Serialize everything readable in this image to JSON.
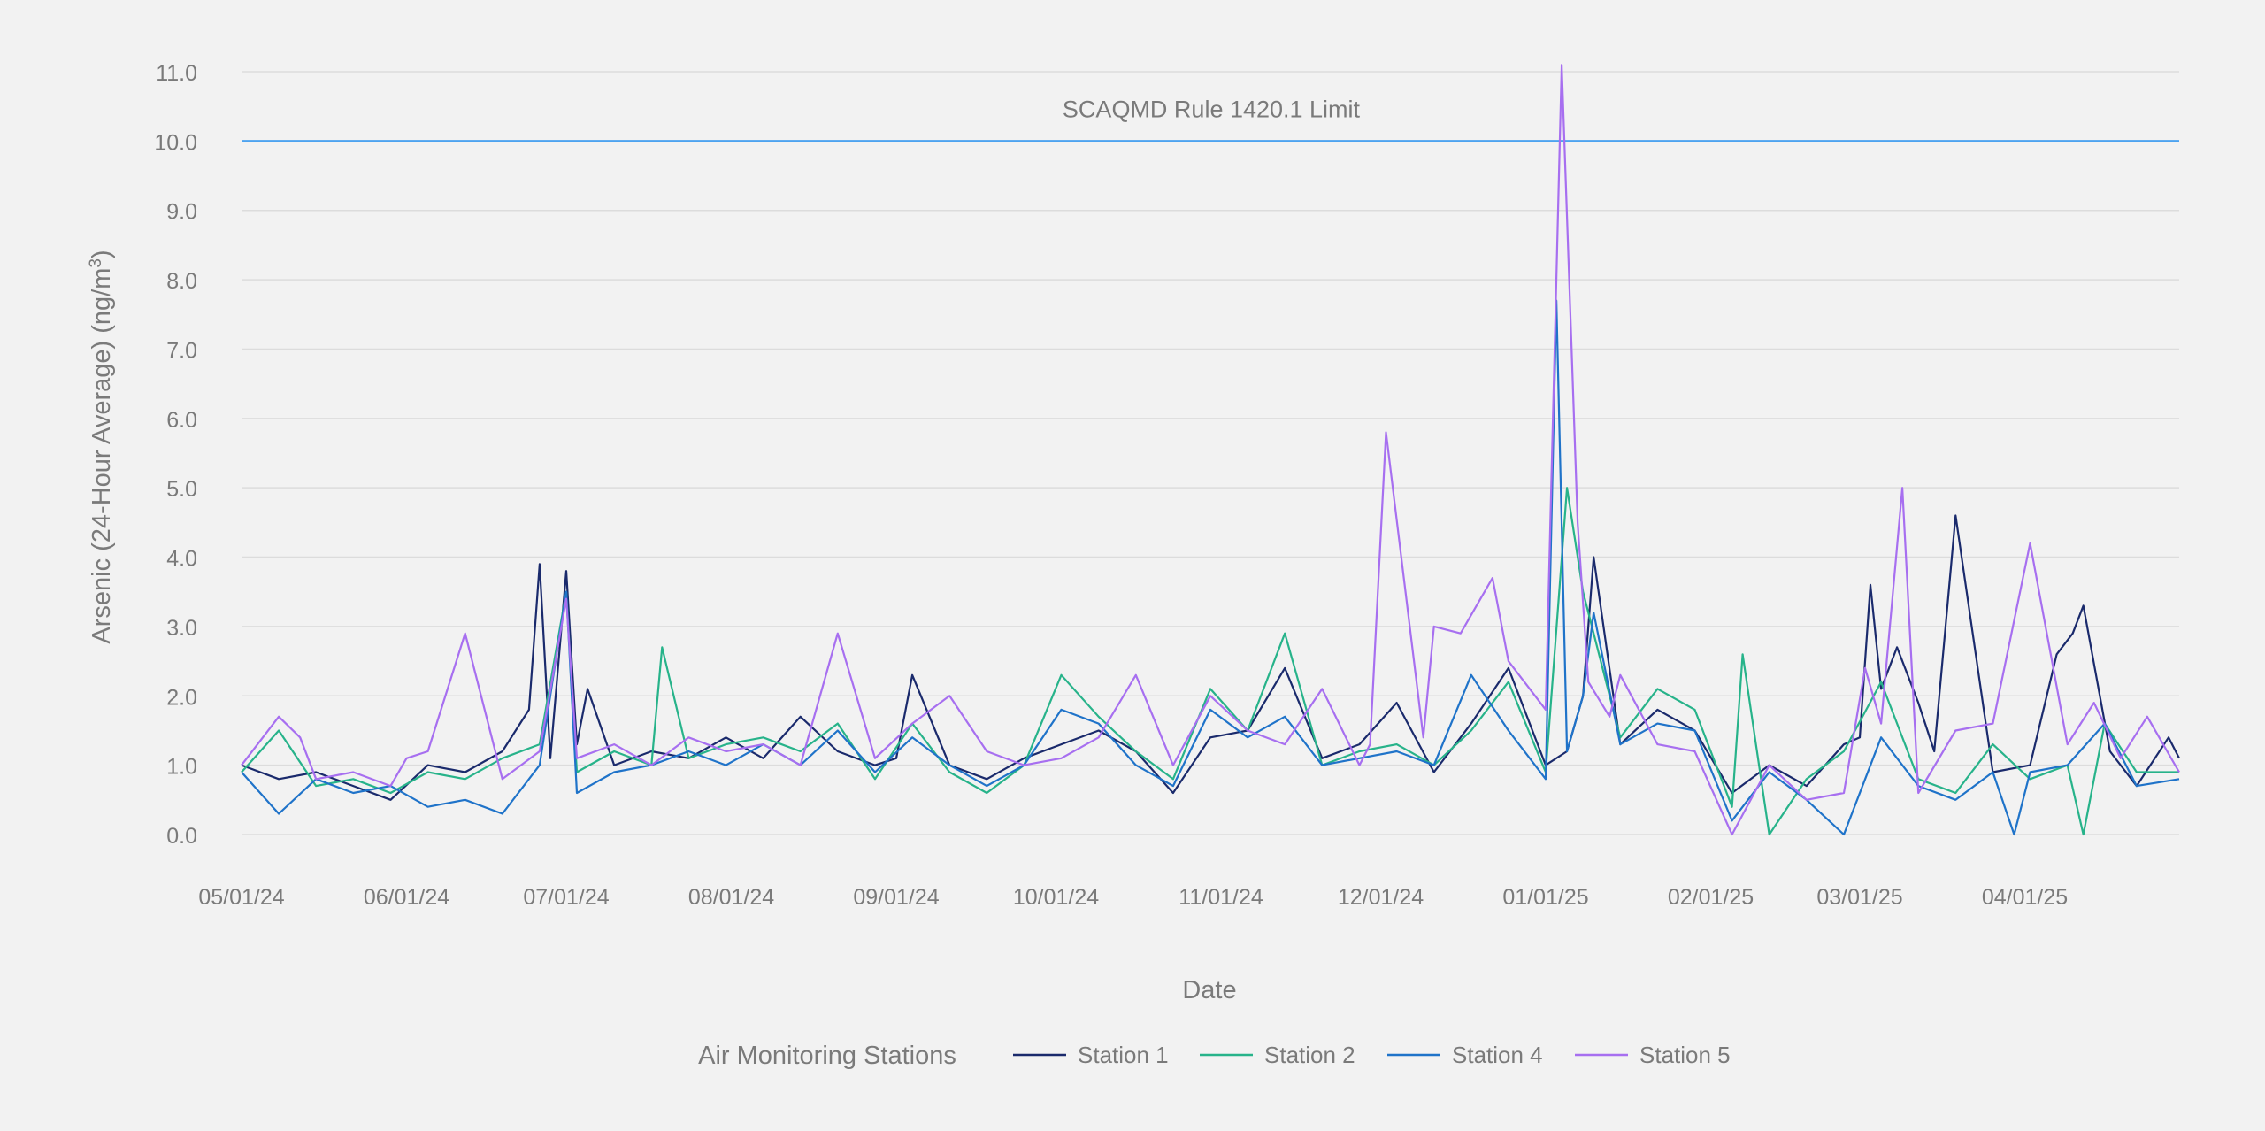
{
  "chart_data": {
    "type": "line",
    "title": "",
    "xlabel": "Date",
    "ylabel": "Arsenic (24-Hour Average) (ng/m³)",
    "ylabel_main": "Arsenic (24-Hour Average) (ng/m",
    "ylabel_sup": "3",
    "ylabel_tail": ")",
    "ylim": [
      0,
      11
    ],
    "yticks": [
      0,
      1,
      2,
      3,
      4,
      5,
      6,
      7,
      8,
      9,
      10,
      11
    ],
    "ytick_labels": [
      "0.0",
      "1.0",
      "2.0",
      "3.0",
      "4.0",
      "5.0",
      "6.0",
      "7.0",
      "8.0",
      "9.0",
      "10.0",
      "11.0"
    ],
    "xlim": [
      "2024-05-01",
      "2025-04-30"
    ],
    "xticks": [
      "2024-05-01",
      "2024-06-01",
      "2024-07-01",
      "2024-08-01",
      "2024-09-01",
      "2024-10-01",
      "2024-11-01",
      "2024-12-01",
      "2025-01-01",
      "2025-02-01",
      "2025-03-01",
      "2025-04-01"
    ],
    "xtick_labels": [
      "05/01/24",
      "06/01/24",
      "07/01/24",
      "08/01/24",
      "09/01/24",
      "10/01/24",
      "11/01/24",
      "12/01/24",
      "01/01/25",
      "02/01/25",
      "03/01/25",
      "04/01/25"
    ],
    "grid": "horizontal",
    "legend": {
      "title": "Air Monitoring Stations",
      "placement": "bottom-center"
    },
    "reference_line": {
      "label": "SCAQMD Rule 1420.1 Limit",
      "value": 10.0,
      "color": "#4da3f0"
    },
    "series": [
      {
        "name": "Station 1",
        "color": "#1a2a6c",
        "x": [
          "2024-05-01",
          "2024-05-08",
          "2024-05-15",
          "2024-05-22",
          "2024-05-29",
          "2024-06-05",
          "2024-06-12",
          "2024-06-19",
          "2024-06-24",
          "2024-06-26",
          "2024-06-28",
          "2024-07-01",
          "2024-07-03",
          "2024-07-05",
          "2024-07-10",
          "2024-07-17",
          "2024-07-24",
          "2024-07-31",
          "2024-08-07",
          "2024-08-14",
          "2024-08-21",
          "2024-08-28",
          "2024-09-01",
          "2024-09-04",
          "2024-09-11",
          "2024-09-18",
          "2024-09-25",
          "2024-10-02",
          "2024-10-09",
          "2024-10-16",
          "2024-10-23",
          "2024-10-30",
          "2024-11-06",
          "2024-11-13",
          "2024-11-20",
          "2024-11-27",
          "2024-12-04",
          "2024-12-11",
          "2024-12-18",
          "2024-12-25",
          "2025-01-01",
          "2025-01-05",
          "2025-01-08",
          "2025-01-10",
          "2025-01-15",
          "2025-01-22",
          "2025-01-29",
          "2025-02-05",
          "2025-02-12",
          "2025-02-19",
          "2025-02-26",
          "2025-03-01",
          "2025-03-03",
          "2025-03-05",
          "2025-03-08",
          "2025-03-12",
          "2025-03-15",
          "2025-03-19",
          "2025-03-26",
          "2025-04-02",
          "2025-04-07",
          "2025-04-10",
          "2025-04-12",
          "2025-04-17",
          "2025-04-22",
          "2025-04-28",
          "2025-04-30"
        ],
        "values": [
          1.0,
          0.8,
          0.9,
          0.7,
          0.5,
          1.0,
          0.9,
          1.2,
          1.8,
          3.9,
          1.1,
          3.8,
          1.3,
          2.1,
          1.0,
          1.2,
          1.1,
          1.4,
          1.1,
          1.7,
          1.2,
          1.0,
          1.1,
          2.3,
          1.0,
          0.8,
          1.1,
          1.3,
          1.5,
          1.2,
          0.6,
          1.4,
          1.5,
          2.4,
          1.1,
          1.3,
          1.9,
          0.9,
          1.6,
          2.4,
          1.0,
          1.2,
          2.0,
          4.0,
          1.3,
          1.8,
          1.5,
          0.6,
          1.0,
          0.7,
          1.3,
          1.4,
          3.6,
          2.1,
          2.7,
          1.9,
          1.2,
          4.6,
          0.9,
          1.0,
          2.6,
          2.9,
          3.3,
          1.2,
          0.7,
          1.4,
          1.1
        ]
      },
      {
        "name": "Station 2",
        "color": "#27b38a",
        "x": [
          "2024-05-01",
          "2024-05-08",
          "2024-05-15",
          "2024-05-22",
          "2024-05-29",
          "2024-06-05",
          "2024-06-12",
          "2024-06-19",
          "2024-06-26",
          "2024-07-01",
          "2024-07-03",
          "2024-07-10",
          "2024-07-17",
          "2024-07-19",
          "2024-07-24",
          "2024-07-31",
          "2024-08-07",
          "2024-08-14",
          "2024-08-21",
          "2024-08-28",
          "2024-09-04",
          "2024-09-11",
          "2024-09-18",
          "2024-09-25",
          "2024-10-02",
          "2024-10-09",
          "2024-10-16",
          "2024-10-23",
          "2024-10-30",
          "2024-11-06",
          "2024-11-13",
          "2024-11-20",
          "2024-11-27",
          "2024-12-04",
          "2024-12-11",
          "2024-12-18",
          "2024-12-25",
          "2025-01-01",
          "2025-01-05",
          "2025-01-08",
          "2025-01-15",
          "2025-01-22",
          "2025-01-29",
          "2025-02-05",
          "2025-02-07",
          "2025-02-12",
          "2025-02-19",
          "2025-02-26",
          "2025-03-05",
          "2025-03-12",
          "2025-03-19",
          "2025-03-26",
          "2025-04-02",
          "2025-04-09",
          "2025-04-12",
          "2025-04-16",
          "2025-04-22",
          "2025-04-30"
        ],
        "values": [
          0.9,
          1.5,
          0.7,
          0.8,
          0.6,
          0.9,
          0.8,
          1.1,
          1.3,
          3.5,
          0.9,
          1.2,
          1.0,
          2.7,
          1.1,
          1.3,
          1.4,
          1.2,
          1.6,
          0.8,
          1.6,
          0.9,
          0.6,
          1.0,
          2.3,
          1.7,
          1.2,
          0.8,
          2.1,
          1.5,
          2.9,
          1.0,
          1.2,
          1.3,
          1.0,
          1.5,
          2.2,
          0.9,
          5.0,
          3.5,
          1.4,
          2.1,
          1.8,
          0.4,
          2.6,
          0.0,
          0.8,
          1.2,
          2.2,
          0.8,
          0.6,
          1.3,
          0.8,
          1.0,
          0.0,
          1.6,
          0.9,
          0.9
        ]
      },
      {
        "name": "Station 4",
        "color": "#1f73c9",
        "x": [
          "2024-05-01",
          "2024-05-08",
          "2024-05-15",
          "2024-05-22",
          "2024-05-29",
          "2024-06-05",
          "2024-06-12",
          "2024-06-19",
          "2024-06-26",
          "2024-07-01",
          "2024-07-03",
          "2024-07-10",
          "2024-07-17",
          "2024-07-24",
          "2024-07-31",
          "2024-08-07",
          "2024-08-14",
          "2024-08-21",
          "2024-08-28",
          "2024-09-04",
          "2024-09-11",
          "2024-09-18",
          "2024-09-25",
          "2024-10-02",
          "2024-10-09",
          "2024-10-16",
          "2024-10-23",
          "2024-10-30",
          "2024-11-06",
          "2024-11-13",
          "2024-11-20",
          "2024-11-27",
          "2024-12-04",
          "2024-12-11",
          "2024-12-18",
          "2024-12-25",
          "2025-01-01",
          "2025-01-03",
          "2025-01-05",
          "2025-01-08",
          "2025-01-10",
          "2025-01-15",
          "2025-01-22",
          "2025-01-29",
          "2025-02-05",
          "2025-02-12",
          "2025-02-19",
          "2025-02-26",
          "2025-03-05",
          "2025-03-12",
          "2025-03-19",
          "2025-03-26",
          "2025-03-30",
          "2025-04-02",
          "2025-04-09",
          "2025-04-16",
          "2025-04-22",
          "2025-04-30"
        ],
        "values": [
          0.9,
          0.3,
          0.8,
          0.6,
          0.7,
          0.4,
          0.5,
          0.3,
          1.0,
          3.5,
          0.6,
          0.9,
          1.0,
          1.2,
          1.0,
          1.3,
          1.0,
          1.5,
          0.9,
          1.4,
          1.0,
          0.7,
          1.0,
          1.8,
          1.6,
          1.0,
          0.7,
          1.8,
          1.4,
          1.7,
          1.0,
          1.1,
          1.2,
          1.0,
          2.3,
          1.5,
          0.8,
          7.7,
          1.2,
          2.0,
          3.2,
          1.3,
          1.6,
          1.5,
          0.2,
          0.9,
          0.5,
          0.0,
          1.4,
          0.7,
          0.5,
          0.9,
          0.0,
          0.9,
          1.0,
          1.6,
          0.7,
          0.8
        ]
      },
      {
        "name": "Station 5",
        "color": "#a76ff0",
        "x": [
          "2024-05-01",
          "2024-05-08",
          "2024-05-12",
          "2024-05-15",
          "2024-05-22",
          "2024-05-29",
          "2024-06-01",
          "2024-06-05",
          "2024-06-12",
          "2024-06-19",
          "2024-06-26",
          "2024-07-01",
          "2024-07-03",
          "2024-07-10",
          "2024-07-17",
          "2024-07-24",
          "2024-07-31",
          "2024-08-07",
          "2024-08-14",
          "2024-08-21",
          "2024-08-28",
          "2024-09-04",
          "2024-09-11",
          "2024-09-18",
          "2024-09-25",
          "2024-10-02",
          "2024-10-09",
          "2024-10-16",
          "2024-10-23",
          "2024-10-30",
          "2024-11-06",
          "2024-11-13",
          "2024-11-20",
          "2024-11-27",
          "2024-11-29",
          "2024-12-02",
          "2024-12-09",
          "2024-12-11",
          "2024-12-16",
          "2024-12-22",
          "2024-12-25",
          "2025-01-01",
          "2025-01-04",
          "2025-01-07",
          "2025-01-09",
          "2025-01-13",
          "2025-01-15",
          "2025-01-22",
          "2025-01-29",
          "2025-02-05",
          "2025-02-12",
          "2025-02-19",
          "2025-02-26",
          "2025-03-02",
          "2025-03-05",
          "2025-03-09",
          "2025-03-12",
          "2025-03-19",
          "2025-03-26",
          "2025-04-02",
          "2025-04-09",
          "2025-04-14",
          "2025-04-19",
          "2025-04-24",
          "2025-04-30"
        ],
        "values": [
          1.0,
          1.7,
          1.4,
          0.8,
          0.9,
          0.7,
          1.1,
          1.2,
          2.9,
          0.8,
          1.2,
          3.4,
          1.1,
          1.3,
          1.0,
          1.4,
          1.2,
          1.3,
          1.0,
          2.9,
          1.1,
          1.6,
          2.0,
          1.2,
          1.0,
          1.1,
          1.4,
          2.3,
          1.0,
          2.0,
          1.5,
          1.3,
          2.1,
          1.0,
          1.3,
          5.8,
          1.4,
          3.0,
          2.9,
          3.7,
          2.5,
          1.8,
          11.1,
          4.5,
          2.2,
          1.7,
          2.3,
          1.3,
          1.2,
          0.0,
          1.0,
          0.5,
          0.6,
          2.4,
          1.6,
          5.0,
          0.6,
          1.5,
          1.6,
          4.2,
          1.3,
          1.9,
          1.1,
          1.7,
          0.9
        ]
      }
    ]
  }
}
